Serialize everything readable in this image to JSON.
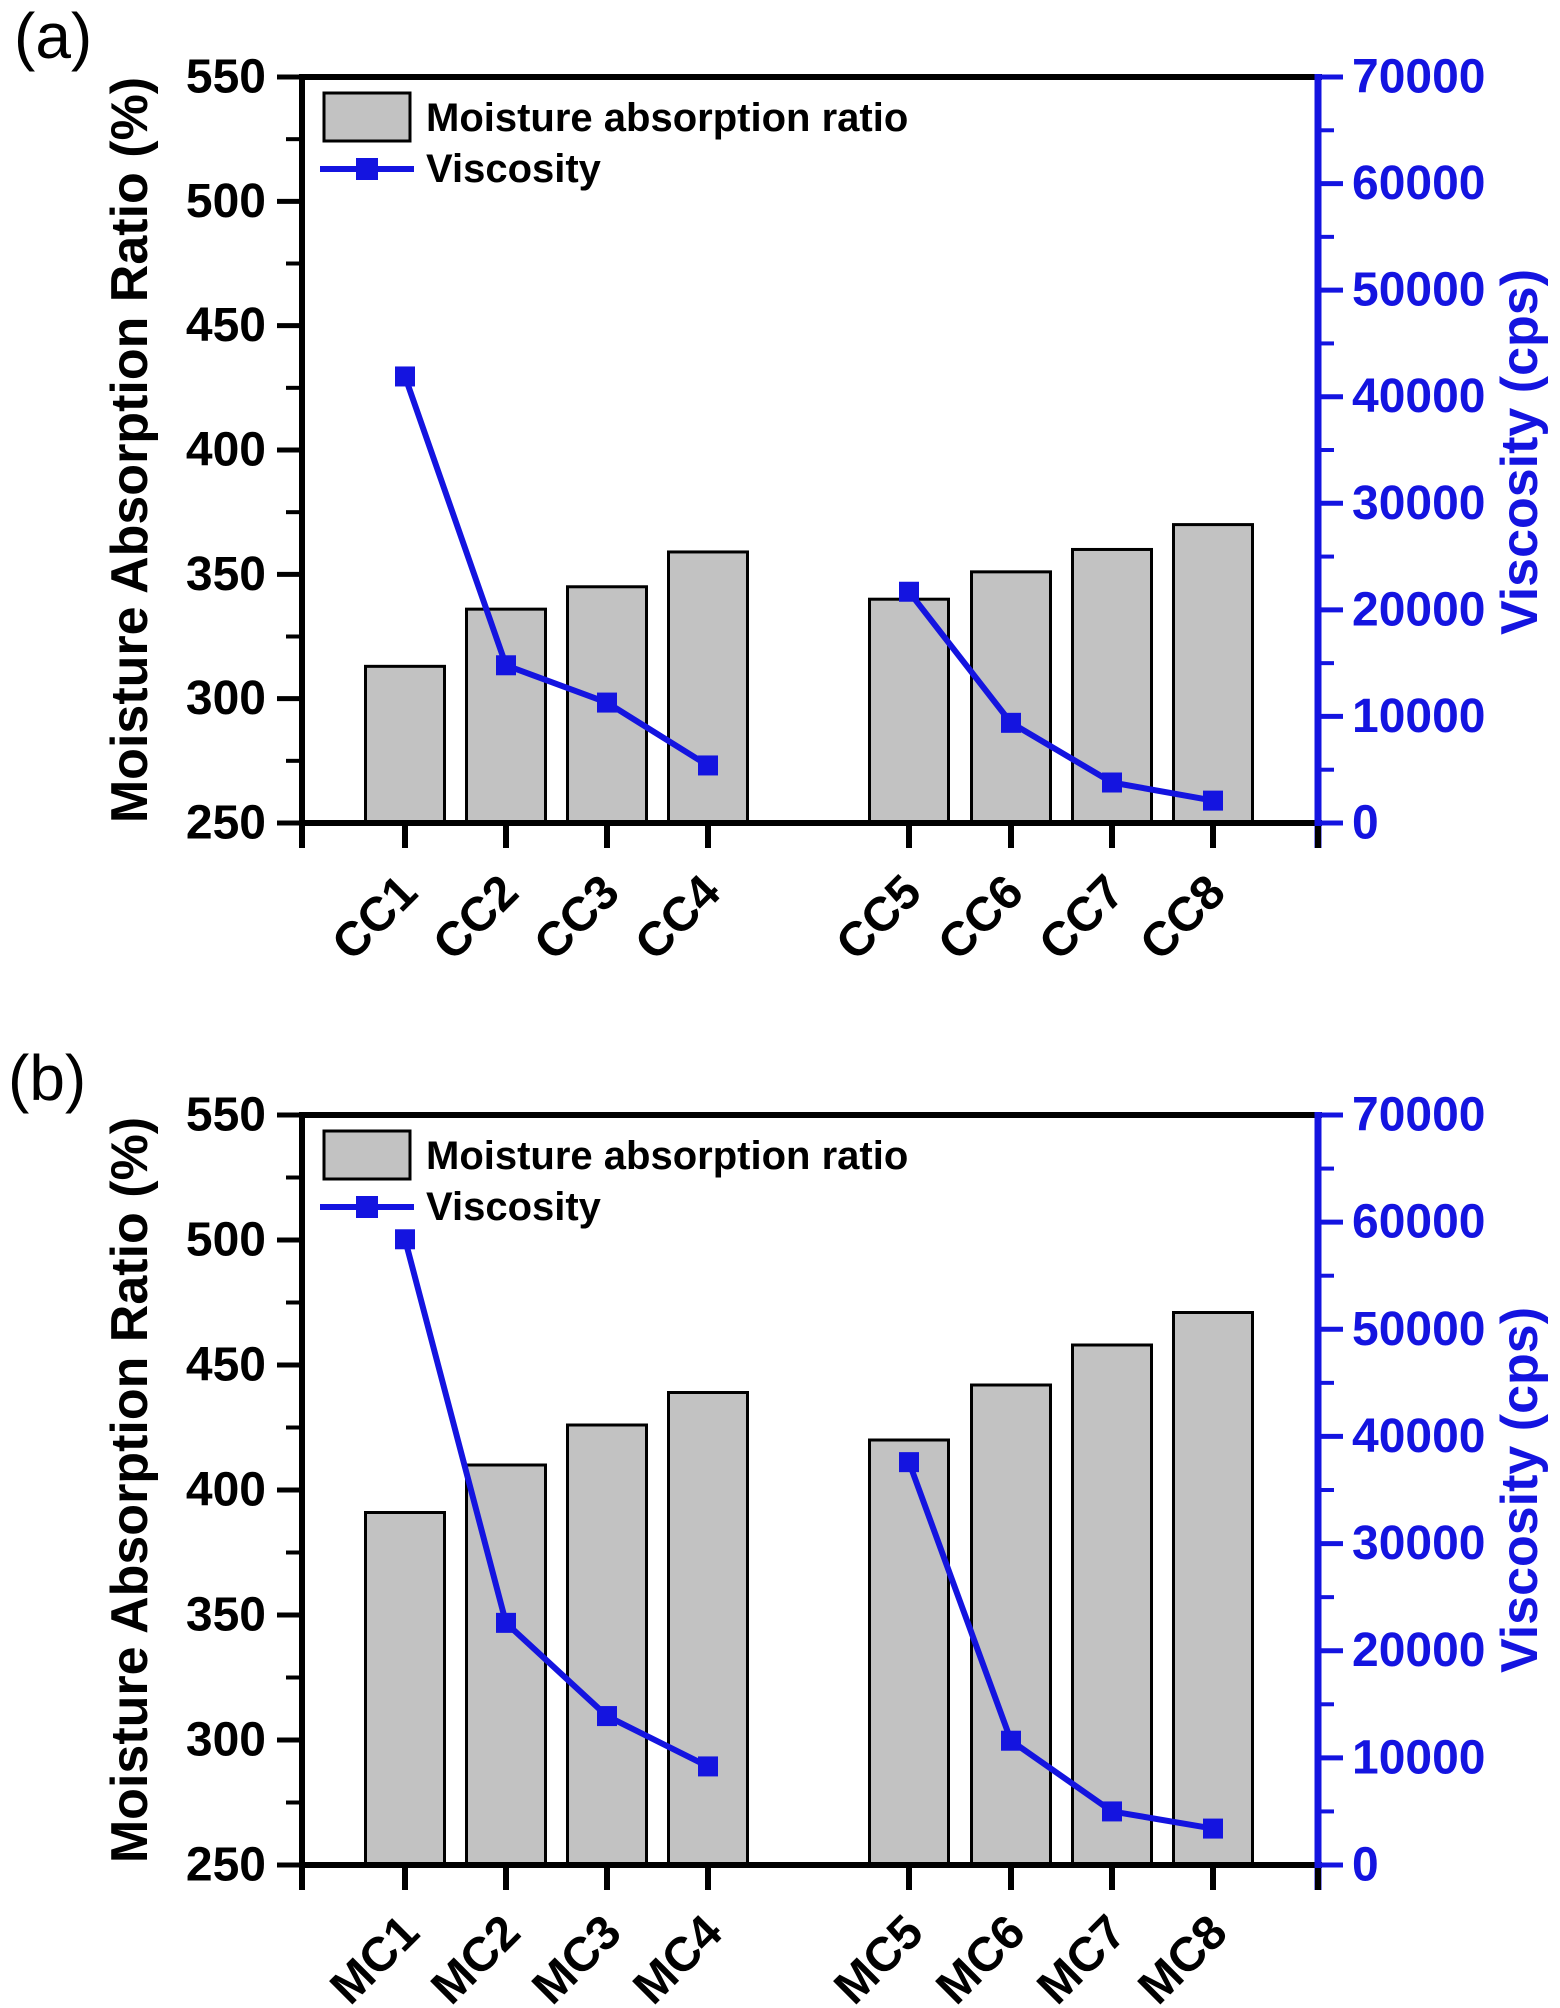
{
  "figure": {
    "background": "#ffffff",
    "description": "Two stacked dual-axis panels: gray bars (moisture absorption ratio, left axis) and blue square-marker line (viscosity, right axis)"
  },
  "colors": {
    "bar_fill": "#c2c2c2",
    "bar_stroke": "#000000",
    "axis_black": "#000000",
    "blue": "#1414e0",
    "background": "#ffffff"
  },
  "chart_data": [
    {
      "type": "bar",
      "panel_label": "(a)",
      "categories": [
        "CC1",
        "CC2",
        "CC3",
        "CC4",
        "CC5",
        "CC6",
        "CC7",
        "CC8"
      ],
      "series": [
        {
          "name": "Moisture absorption ratio",
          "type": "bar",
          "axis": "left",
          "values": [
            313,
            336,
            345,
            359,
            340,
            351,
            360,
            370
          ]
        },
        {
          "name": "Viscosity",
          "type": "line",
          "axis": "right",
          "values": [
            41900,
            14800,
            11300,
            5400,
            21700,
            9400,
            3800,
            2100
          ]
        }
      ],
      "ylabel_left": "Moisture Absorption Ratio (%)",
      "ylabel_right": "Viscosity (cps)",
      "ylim_left": [
        250,
        550
      ],
      "ytick_step_left": 50,
      "ytick_minor_step_left": 25,
      "ylim_right": [
        0,
        70000
      ],
      "ytick_step_right": 10000,
      "ytick_minor_step_right": 5000,
      "legend_position": "top-left",
      "grid": false,
      "group_break_index": 4
    },
    {
      "type": "bar",
      "panel_label": "(b)",
      "categories": [
        "MC1",
        "MC2",
        "MC3",
        "MC4",
        "MC5",
        "MC6",
        "MC7",
        "MC8"
      ],
      "series": [
        {
          "name": "Moisture absorption ratio",
          "type": "bar",
          "axis": "left",
          "values": [
            391,
            410,
            426,
            439,
            420,
            442,
            458,
            471
          ]
        },
        {
          "name": "Viscosity",
          "type": "line",
          "axis": "right",
          "values": [
            58400,
            22600,
            13900,
            9200,
            37600,
            11600,
            5000,
            3400
          ]
        }
      ],
      "ylabel_left": "Moisture Absorption Ratio (%)",
      "ylabel_right": "Viscosity (cps)",
      "ylim_left": [
        250,
        550
      ],
      "ytick_step_left": 50,
      "ytick_minor_step_left": 25,
      "ylim_right": [
        0,
        70000
      ],
      "ytick_step_right": 10000,
      "ytick_minor_step_right": 5000,
      "legend_position": "top-left",
      "grid": false,
      "group_break_index": 4
    }
  ]
}
